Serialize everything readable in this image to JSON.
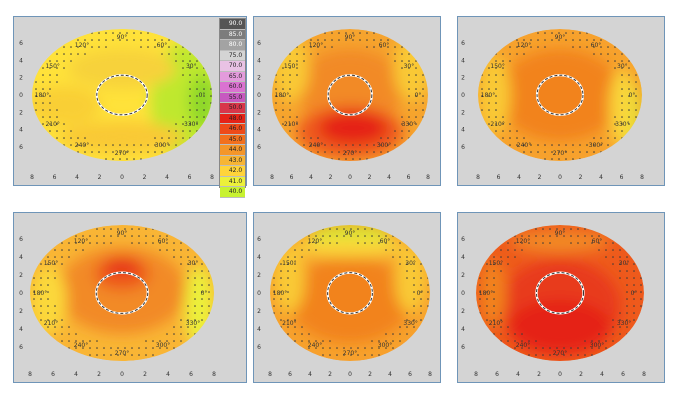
{
  "chart_data": {
    "type": "heatmap",
    "colors": {
      "panel_bg": "#d4d4d4",
      "frame": "#6f95b8",
      "dot": "#3a3a3a",
      "circle": "#ffffff"
    },
    "scale": {
      "values": [
        "90.0",
        "85.0",
        "80.0",
        "75.0",
        "70.0",
        "65.0",
        "60.0",
        "55.0",
        "50.0",
        "48.0",
        "46.0",
        "45.0",
        "44.0",
        "43.0",
        "42.0",
        "41.0",
        "40.0"
      ],
      "colors": [
        "#555555",
        "#7c7c7c",
        "#a3a3a3",
        "#d4d4d4",
        "#e9c2e4",
        "#e39bdc",
        "#da72d1",
        "#c759c0",
        "#d8364a",
        "#e52318",
        "#ee4a1a",
        "#f2701e",
        "#f4962a",
        "#f7b535",
        "#ffd43a",
        "#ecf03a",
        "#c8f230"
      ]
    },
    "angle_labels": [
      "90°",
      "120°",
      "60°",
      "150°",
      "30°",
      "180°",
      "0°",
      "210°",
      "330°",
      "240°",
      "300°",
      "270°"
    ],
    "axis_ticks": [
      "8",
      "6",
      "4",
      "2",
      "0",
      "2",
      "4",
      "6",
      "8"
    ],
    "maps": [
      {
        "base": "#ffe23a",
        "blobs": [
          {
            "cx": 0.86,
            "cy": 0.55,
            "rx": 0.2,
            "ry": 0.45,
            "c": "#bfe82f"
          },
          {
            "cx": 0.95,
            "cy": 0.55,
            "rx": 0.08,
            "ry": 0.2,
            "c": "#8ed82a"
          },
          {
            "cx": 0.18,
            "cy": 0.58,
            "rx": 0.2,
            "ry": 0.15,
            "c": "#f9cf35"
          },
          {
            "cx": 0.5,
            "cy": 0.82,
            "rx": 0.35,
            "ry": 0.12,
            "c": "#f9c935"
          },
          {
            "cx": 0.5,
            "cy": 0.3,
            "rx": 0.3,
            "ry": 0.15,
            "c": "#f7d23a"
          }
        ]
      },
      {
        "base": "#f6a42e",
        "blobs": [
          {
            "cx": 0.5,
            "cy": 0.45,
            "rx": 0.35,
            "ry": 0.3,
            "c": "#f28a26"
          },
          {
            "cx": 0.5,
            "cy": 0.78,
            "rx": 0.34,
            "ry": 0.2,
            "c": "#ee5a1c"
          },
          {
            "cx": 0.52,
            "cy": 0.75,
            "rx": 0.22,
            "ry": 0.12,
            "c": "#e52318"
          },
          {
            "cx": 0.12,
            "cy": 0.3,
            "rx": 0.12,
            "ry": 0.25,
            "c": "#f9c935"
          },
          {
            "cx": 0.9,
            "cy": 0.3,
            "rx": 0.12,
            "ry": 0.25,
            "c": "#f9c935"
          }
        ]
      },
      {
        "base": "#f7a22d",
        "blobs": [
          {
            "cx": 0.5,
            "cy": 0.5,
            "rx": 0.38,
            "ry": 0.35,
            "c": "#f2831f"
          },
          {
            "cx": 0.93,
            "cy": 0.65,
            "rx": 0.06,
            "ry": 0.25,
            "c": "#c8f230"
          },
          {
            "cx": 0.88,
            "cy": 0.6,
            "rx": 0.08,
            "ry": 0.3,
            "c": "#f9d63a"
          },
          {
            "cx": 0.1,
            "cy": 0.5,
            "rx": 0.1,
            "ry": 0.3,
            "c": "#f9c935"
          }
        ]
      },
      {
        "base": "#f9b535",
        "blobs": [
          {
            "cx": 0.5,
            "cy": 0.48,
            "rx": 0.35,
            "ry": 0.32,
            "c": "#f28a26"
          },
          {
            "cx": 0.5,
            "cy": 0.36,
            "rx": 0.15,
            "ry": 0.12,
            "c": "#ee5a1c"
          },
          {
            "cx": 0.5,
            "cy": 0.3,
            "rx": 0.1,
            "ry": 0.05,
            "c": "#e52318"
          },
          {
            "cx": 0.92,
            "cy": 0.6,
            "rx": 0.08,
            "ry": 0.3,
            "c": "#ecf03a"
          },
          {
            "cx": 0.1,
            "cy": 0.55,
            "rx": 0.1,
            "ry": 0.25,
            "c": "#fbd83a"
          }
        ]
      },
      {
        "base": "#f7a12d",
        "blobs": [
          {
            "cx": 0.5,
            "cy": 0.55,
            "rx": 0.38,
            "ry": 0.32,
            "c": "#f2831f"
          },
          {
            "cx": 0.5,
            "cy": 0.07,
            "rx": 0.25,
            "ry": 0.06,
            "c": "#c8f230"
          },
          {
            "cx": 0.5,
            "cy": 0.16,
            "rx": 0.35,
            "ry": 0.08,
            "c": "#f9d63a"
          },
          {
            "cx": 0.88,
            "cy": 0.4,
            "rx": 0.1,
            "ry": 0.25,
            "c": "#f9c935"
          },
          {
            "cx": 0.12,
            "cy": 0.4,
            "rx": 0.1,
            "ry": 0.25,
            "c": "#f9c935"
          }
        ]
      },
      {
        "base": "#ee5a1c",
        "blobs": [
          {
            "cx": 0.5,
            "cy": 0.6,
            "rx": 0.36,
            "ry": 0.35,
            "c": "#e83a1a"
          },
          {
            "cx": 0.5,
            "cy": 0.75,
            "rx": 0.3,
            "ry": 0.2,
            "c": "#e52318"
          },
          {
            "cx": 0.5,
            "cy": 0.12,
            "rx": 0.3,
            "ry": 0.08,
            "c": "#f28a26"
          },
          {
            "cx": 0.1,
            "cy": 0.5,
            "rx": 0.08,
            "ry": 0.25,
            "c": "#f2831f"
          }
        ]
      }
    ]
  }
}
